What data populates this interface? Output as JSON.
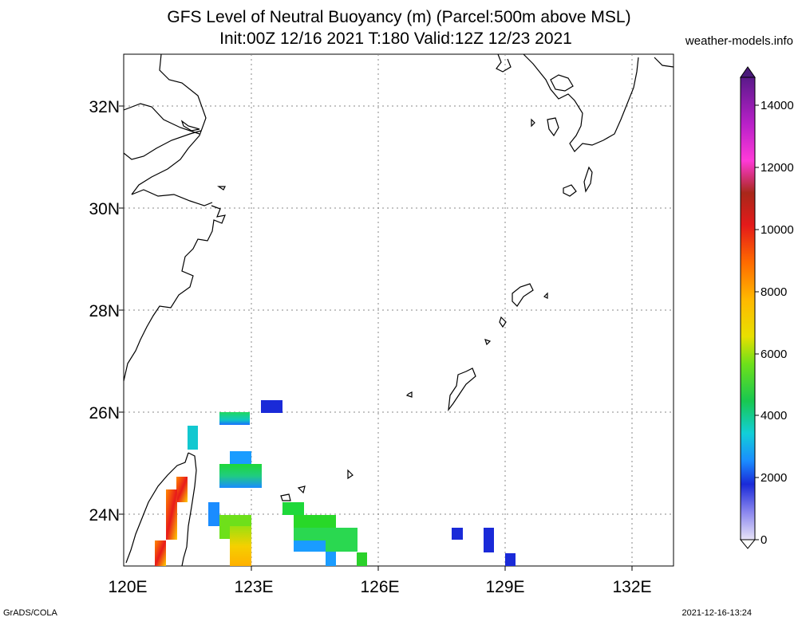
{
  "header": {
    "title_line1": "GFS Level of Neutral Buoyancy (m) (Parcel:500m above MSL)",
    "title_line2": "Init:00Z 12/16 2021 T:180 Valid:12Z 12/23 2021",
    "site": "weather-models.info"
  },
  "footer": {
    "left": "GrADS/COLA",
    "right": "2021-12-16-13:24"
  },
  "map": {
    "lat_labels": [
      "32N",
      "30N",
      "28N",
      "26N",
      "24N"
    ],
    "lon_labels": [
      "120E",
      "123E",
      "126E",
      "129E",
      "132E"
    ],
    "colorbar_labels": [
      "14000",
      "12000",
      "10000",
      "8000",
      "6000",
      "4000",
      "2000",
      "0"
    ]
  },
  "colors": {
    "low": "#1a3cff",
    "mid": "#00c8c8",
    "green": "#2ad12a",
    "yellow": "#f5d000",
    "red": "#e81a1a",
    "purple": "#6a1a9a"
  }
}
